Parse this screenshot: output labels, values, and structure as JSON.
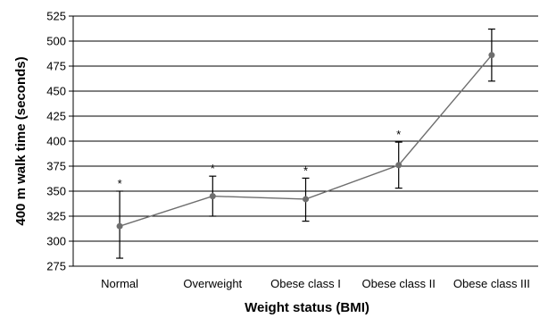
{
  "chart_data": {
    "type": "line",
    "xlabel": "Weight status (BMI)",
    "ylabel": "400 m walk time (seconds)",
    "ylim": [
      275,
      525
    ],
    "yticks": [
      275,
      300,
      325,
      350,
      375,
      400,
      425,
      450,
      475,
      500,
      525
    ],
    "grid": true,
    "categories": [
      "Normal",
      "Overweight",
      "Obese class I",
      "Obese class II",
      "Obese class III"
    ],
    "series": [
      {
        "values": [
          315,
          345,
          342,
          376,
          486
        ],
        "error_low": [
          283,
          325,
          320,
          353,
          460
        ],
        "error_high": [
          350,
          365,
          363,
          399,
          512
        ],
        "significance": [
          "*",
          "*",
          "*",
          "*",
          ""
        ],
        "color": "#6e6e6e"
      }
    ]
  }
}
